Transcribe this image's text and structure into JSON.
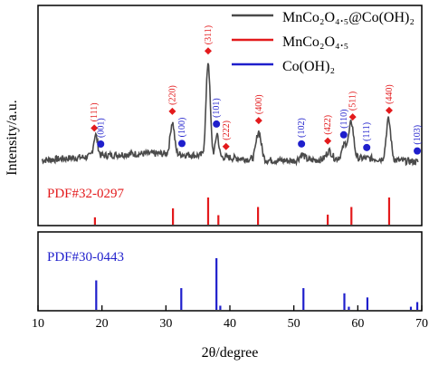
{
  "chart_data": {
    "type": "line",
    "xlabel": "2θ/degree",
    "ylabel": "Intensity/a.u.",
    "xlim": [
      10,
      70
    ],
    "x_ticks": [
      10,
      20,
      30,
      40,
      50,
      60,
      70
    ],
    "colors": {
      "sample": "#4a4a4a",
      "mnco": "#e31a1c",
      "coh": "#1f1fcc",
      "axis": "#000000"
    },
    "legend": {
      "placement": "top-right",
      "entries": [
        {
          "key": "sample",
          "name_main": "MnCo",
          "name_html": "MnCo₂O₄.₅@Co(OH)₂"
        },
        {
          "key": "mnco",
          "name_html": "MnCo₂O₄.₅"
        },
        {
          "key": "coh",
          "name_html": "Co(OH)₂"
        }
      ]
    },
    "sample_pattern": {
      "peaks": [
        {
          "x": 19.0,
          "h": 0.18,
          "w": 0.45
        },
        {
          "x": 31.0,
          "h": 0.27,
          "w": 0.45
        },
        {
          "x": 36.6,
          "h": 0.8,
          "w": 0.45
        },
        {
          "x": 38.0,
          "h": 0.2,
          "w": 0.35
        },
        {
          "x": 44.5,
          "h": 0.24,
          "w": 0.55
        },
        {
          "x": 51.3,
          "h": 0.05,
          "w": 0.6
        },
        {
          "x": 55.5,
          "h": 0.07,
          "w": 0.6
        },
        {
          "x": 58.0,
          "h": 0.12,
          "w": 0.6
        },
        {
          "x": 59.0,
          "h": 0.3,
          "w": 0.5
        },
        {
          "x": 64.8,
          "h": 0.34,
          "w": 0.5
        }
      ]
    },
    "peak_labels": [
      {
        "x": 18.8,
        "phase": "mnco",
        "label": "(111)"
      },
      {
        "x": 19.8,
        "phase": "coh",
        "label": "(001)"
      },
      {
        "x": 31.0,
        "phase": "mnco",
        "label": "(220)"
      },
      {
        "x": 32.5,
        "phase": "coh",
        "label": "(100)"
      },
      {
        "x": 36.6,
        "phase": "mnco",
        "label": "(311)"
      },
      {
        "x": 37.9,
        "phase": "coh",
        "label": "(101)"
      },
      {
        "x": 39.4,
        "phase": "mnco",
        "label": "(222)"
      },
      {
        "x": 44.5,
        "phase": "mnco",
        "label": "(400)"
      },
      {
        "x": 51.2,
        "phase": "coh",
        "label": "(102)"
      },
      {
        "x": 55.3,
        "phase": "mnco",
        "label": "(422)"
      },
      {
        "x": 57.8,
        "phase": "coh",
        "label": "(110)"
      },
      {
        "x": 59.2,
        "phase": "mnco",
        "label": "(511)"
      },
      {
        "x": 61.4,
        "phase": "coh",
        "label": "(111)"
      },
      {
        "x": 64.9,
        "phase": "mnco",
        "label": "(440)"
      },
      {
        "x": 69.3,
        "phase": "coh",
        "label": "(103)"
      }
    ],
    "pdf_mnco": {
      "label": "PDF#32-0297",
      "lines": [
        {
          "x": 18.9,
          "i": 0.27
        },
        {
          "x": 31.1,
          "i": 0.6
        },
        {
          "x": 36.6,
          "i": 1.0
        },
        {
          "x": 38.2,
          "i": 0.35
        },
        {
          "x": 44.4,
          "i": 0.65
        },
        {
          "x": 55.3,
          "i": 0.37
        },
        {
          "x": 59.0,
          "i": 0.65
        },
        {
          "x": 64.9,
          "i": 1.0
        }
      ]
    },
    "pdf_coh": {
      "label": "PDF#30-0443",
      "lines": [
        {
          "x": 19.1,
          "i": 0.57
        },
        {
          "x": 32.4,
          "i": 0.42
        },
        {
          "x": 37.9,
          "i": 1.0
        },
        {
          "x": 38.5,
          "i": 0.08
        },
        {
          "x": 51.5,
          "i": 0.42
        },
        {
          "x": 57.9,
          "i": 0.32
        },
        {
          "x": 58.6,
          "i": 0.06
        },
        {
          "x": 61.5,
          "i": 0.24
        },
        {
          "x": 68.3,
          "i": 0.06
        },
        {
          "x": 69.3,
          "i": 0.15
        }
      ]
    }
  }
}
